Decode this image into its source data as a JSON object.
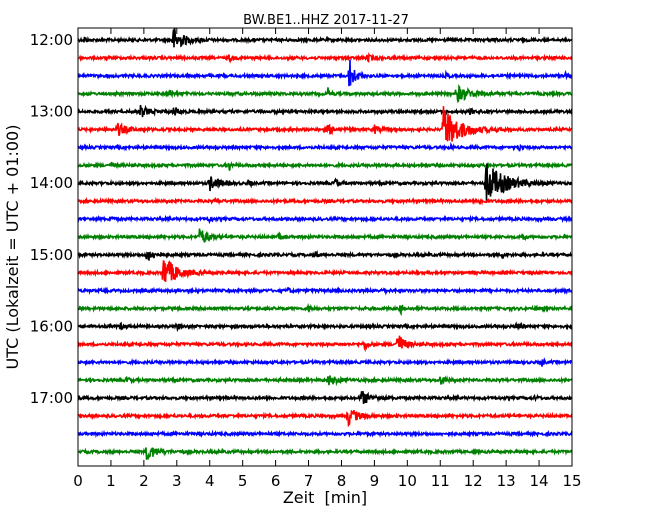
{
  "chart_data": {
    "type": "line",
    "title": "BW.BE1..HHZ 2017-11-27",
    "xlabel": "Zeit  [min]",
    "ylabel": "UTC (Lokalzeit = UTC + 01:00)",
    "xlim": [
      0,
      15
    ],
    "x_ticks": [
      "0",
      "1",
      "2",
      "3",
      "4",
      "5",
      "6",
      "7",
      "8",
      "9",
      "10",
      "11",
      "12",
      "13",
      "14",
      "15"
    ],
    "y_ticks": [
      "12:00",
      "13:00",
      "14:00",
      "15:00",
      "16:00",
      "17:00"
    ],
    "grid": false,
    "trace_interval_min": 15,
    "trace_colors": [
      "#000000",
      "#ff0000",
      "#0000ff",
      "#008000"
    ],
    "traces": [
      {
        "start": "12:00",
        "events": [
          {
            "t": 2.9,
            "amp": 13,
            "dur": 0.6
          },
          {
            "t": 0.2,
            "amp": 4,
            "dur": 0.1
          },
          {
            "t": 12.6,
            "amp": 4,
            "dur": 0.1
          }
        ]
      },
      {
        "start": "12:15",
        "events": [
          {
            "t": 8.8,
            "amp": 3,
            "dur": 0.4
          },
          {
            "t": 4.6,
            "amp": 3,
            "dur": 0.2
          }
        ]
      },
      {
        "start": "12:30",
        "events": [
          {
            "t": 8.25,
            "amp": 17,
            "dur": 0.3
          },
          {
            "t": 11.2,
            "amp": 4,
            "dur": 0.1
          },
          {
            "t": 14.8,
            "amp": 4,
            "dur": 0.1
          }
        ]
      },
      {
        "start": "12:45",
        "events": [
          {
            "t": 11.5,
            "amp": 8,
            "dur": 0.9
          },
          {
            "t": 7.6,
            "amp": 6,
            "dur": 0.1
          },
          {
            "t": 2.8,
            "amp": 3,
            "dur": 0.2
          }
        ]
      },
      {
        "start": "13:00",
        "events": [
          {
            "t": 1.9,
            "amp": 6,
            "dur": 0.5
          },
          {
            "t": 2.9,
            "amp": 5,
            "dur": 0.3
          },
          {
            "t": 11.9,
            "amp": 3,
            "dur": 0.2
          }
        ]
      },
      {
        "start": "13:15",
        "events": [
          {
            "t": 11.1,
            "amp": 23,
            "dur": 1.0
          },
          {
            "t": 1.2,
            "amp": 6,
            "dur": 0.6
          },
          {
            "t": 7.6,
            "amp": 5,
            "dur": 0.3
          },
          {
            "t": 9.0,
            "amp": 4,
            "dur": 0.3
          }
        ]
      },
      {
        "start": "13:30",
        "events": [
          {
            "t": 13.4,
            "amp": 4,
            "dur": 0.1
          },
          {
            "t": 11.3,
            "amp": 3,
            "dur": 0.1
          }
        ]
      },
      {
        "start": "13:45",
        "events": [
          {
            "t": 4.6,
            "amp": 5,
            "dur": 0.1
          },
          {
            "t": 1.0,
            "amp": 3,
            "dur": 0.2
          }
        ]
      },
      {
        "start": "14:00",
        "events": [
          {
            "t": 12.4,
            "amp": 20,
            "dur": 1.2
          },
          {
            "t": 4.0,
            "amp": 7,
            "dur": 0.6
          },
          {
            "t": 5.2,
            "amp": 4,
            "dur": 0.1
          },
          {
            "t": 7.8,
            "amp": 4,
            "dur": 0.3
          }
        ]
      },
      {
        "start": "14:15",
        "events": [
          {
            "t": 4.2,
            "amp": 3,
            "dur": 0.2
          },
          {
            "t": 12.2,
            "amp": 3,
            "dur": 0.2
          }
        ]
      },
      {
        "start": "14:30",
        "events": [
          {
            "t": 4.0,
            "amp": 4,
            "dur": 0.1
          },
          {
            "t": 1.0,
            "amp": 4,
            "dur": 0.1
          }
        ]
      },
      {
        "start": "14:45",
        "events": [
          {
            "t": 3.7,
            "amp": 9,
            "dur": 0.5
          },
          {
            "t": 13.5,
            "amp": 5,
            "dur": 0.1
          },
          {
            "t": 6.1,
            "amp": 3,
            "dur": 0.2
          }
        ]
      },
      {
        "start": "15:00",
        "events": [
          {
            "t": 2.1,
            "amp": 6,
            "dur": 0.5
          },
          {
            "t": 7.2,
            "amp": 3,
            "dur": 0.2
          },
          {
            "t": 12.9,
            "amp": 3,
            "dur": 0.2
          }
        ]
      },
      {
        "start": "15:15",
        "events": [
          {
            "t": 2.6,
            "amp": 16,
            "dur": 0.8
          }
        ]
      },
      {
        "start": "15:30",
        "events": [
          {
            "t": 9.3,
            "amp": 4,
            "dur": 0.1
          },
          {
            "t": 6.4,
            "amp": 3,
            "dur": 0.1
          }
        ]
      },
      {
        "start": "15:45",
        "events": [
          {
            "t": 9.8,
            "amp": 5,
            "dur": 0.1
          },
          {
            "t": 7.0,
            "amp": 3,
            "dur": 0.2
          }
        ]
      },
      {
        "start": "16:00",
        "events": [
          {
            "t": 1.3,
            "amp": 3,
            "dur": 0.2
          },
          {
            "t": 3.0,
            "amp": 3,
            "dur": 0.2
          },
          {
            "t": 13.3,
            "amp": 3,
            "dur": 0.2
          }
        ]
      },
      {
        "start": "16:15",
        "events": [
          {
            "t": 9.7,
            "amp": 12,
            "dur": 0.4
          },
          {
            "t": 8.7,
            "amp": 5,
            "dur": 0.2
          }
        ]
      },
      {
        "start": "16:30",
        "events": [
          {
            "t": 14.1,
            "amp": 5,
            "dur": 0.1
          }
        ]
      },
      {
        "start": "16:45",
        "events": [
          {
            "t": 7.6,
            "amp": 5,
            "dur": 0.6
          },
          {
            "t": 1.5,
            "amp": 4,
            "dur": 0.1
          },
          {
            "t": 11.0,
            "amp": 4,
            "dur": 0.3
          }
        ]
      },
      {
        "start": "17:00",
        "events": [
          {
            "t": 8.6,
            "amp": 7,
            "dur": 0.6
          },
          {
            "t": 13.9,
            "amp": 3,
            "dur": 0.1
          }
        ]
      },
      {
        "start": "17:15",
        "events": [
          {
            "t": 8.2,
            "amp": 9,
            "dur": 0.6
          }
        ]
      },
      {
        "start": "17:30",
        "events": []
      },
      {
        "start": "17:45",
        "events": [
          {
            "t": 2.1,
            "amp": 9,
            "dur": 0.5
          }
        ]
      }
    ]
  }
}
